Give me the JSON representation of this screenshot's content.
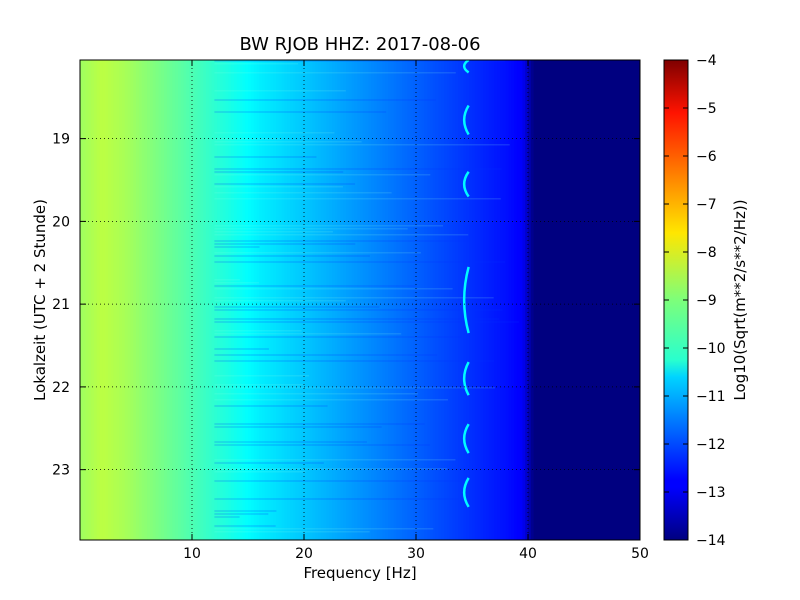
{
  "chart_data": {
    "type": "heatmap",
    "title": "BW RJOB HHZ: 2017-08-06",
    "xlabel": "Frequency [Hz]",
    "ylabel": "Lokalzeit (UTC + 2 Stunde)",
    "xlim": [
      0,
      50
    ],
    "ylim": [
      23.85,
      18.05
    ],
    "x_ticks": [
      10,
      20,
      30,
      40,
      50
    ],
    "x_tick_labels": [
      "10",
      "20",
      "30",
      "40",
      "50"
    ],
    "y_ticks": [
      19,
      20,
      21,
      22,
      23
    ],
    "y_tick_labels": [
      "19",
      "20",
      "21",
      "22",
      "23"
    ],
    "grid": true,
    "colormap": "jet",
    "colorbar": {
      "label": "Log10(Sqrt(m**2/s**2/Hz))",
      "range": [
        -14,
        -4
      ],
      "ticks": [
        -4,
        -5,
        -6,
        -7,
        -8,
        -9,
        -10,
        -11,
        -12,
        -13,
        -14
      ],
      "tick_labels": [
        "−4",
        "−5",
        "−6",
        "−7",
        "−8",
        "−9",
        "−10",
        "−11",
        "−12",
        "−13",
        "−14"
      ]
    },
    "spectrum_profile": {
      "frequency_hz": [
        0,
        2,
        4,
        6,
        8,
        10,
        12,
        14,
        16,
        18,
        20,
        22,
        24,
        26,
        28,
        30,
        32,
        34,
        36,
        38,
        39.5,
        40.5,
        45,
        50
      ],
      "level": [
        -8.7,
        -8.4,
        -8.6,
        -8.9,
        -9.2,
        -9.5,
        -9.8,
        -10.1,
        -10.4,
        -10.6,
        -10.8,
        -11.0,
        -11.2,
        -11.4,
        -11.6,
        -11.8,
        -12.0,
        -12.2,
        -12.4,
        -12.6,
        -12.8,
        -14.0,
        -14.0,
        -14.0
      ]
    },
    "tonal_line": {
      "frequency_hz": 34.2,
      "level": -10.3,
      "segments": [
        {
          "t_start": 18.05,
          "t_end": 18.2
        },
        {
          "t_start": 18.6,
          "t_end": 18.95
        },
        {
          "t_start": 19.4,
          "t_end": 19.7
        },
        {
          "t_start": 20.55,
          "t_end": 21.35
        },
        {
          "t_start": 21.7,
          "t_end": 22.1
        },
        {
          "t_start": 22.45,
          "t_end": 22.8
        },
        {
          "t_start": 23.1,
          "t_end": 23.45
        }
      ]
    }
  }
}
